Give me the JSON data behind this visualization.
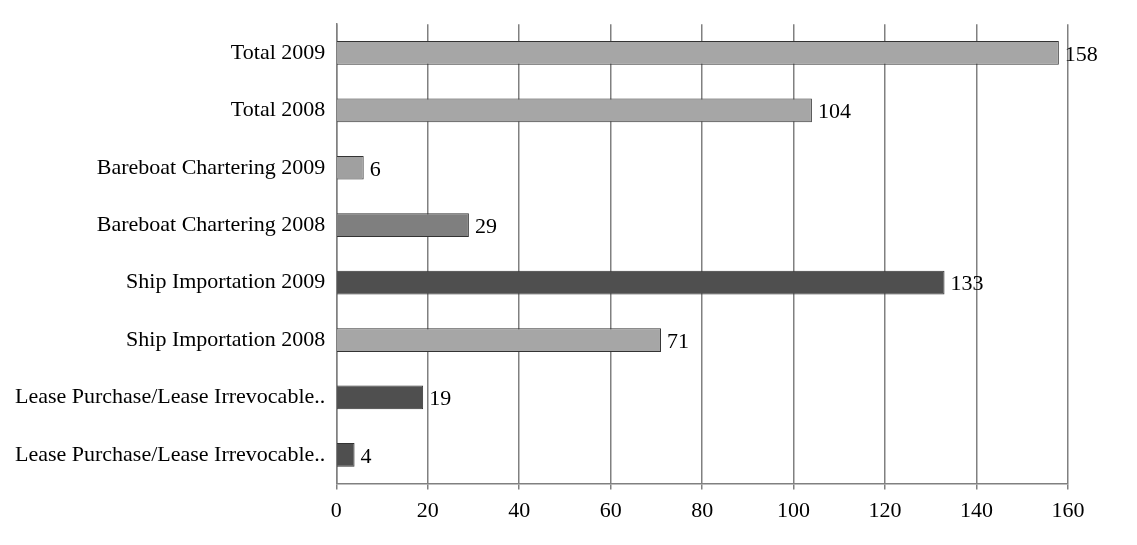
{
  "chart_data": {
    "type": "bar",
    "orientation": "horizontal",
    "categories": [
      "Total 2009",
      "Total 2008",
      "Bareboat Chartering 2009",
      "Bareboat Chartering 2008",
      "Ship Importation 2009",
      "Ship Importation 2008",
      "Lease Purchase/Lease Irrevocable..",
      "Lease Purchase/Lease Irrevocable.."
    ],
    "values": [
      158,
      104,
      6,
      29,
      133,
      71,
      19,
      4
    ],
    "colors": [
      "#a6a6a6",
      "#a6a6a6",
      "#a0a0a0",
      "#7f7f7f",
      "#4f4f4f",
      "#a6a6a6",
      "#4f4f4f",
      "#4f4f4f"
    ],
    "xlim": [
      0,
      160
    ],
    "xticks": [
      0,
      20,
      40,
      60,
      80,
      100,
      120,
      140,
      160
    ],
    "grid": "x",
    "legend": false,
    "data_labels": true
  }
}
